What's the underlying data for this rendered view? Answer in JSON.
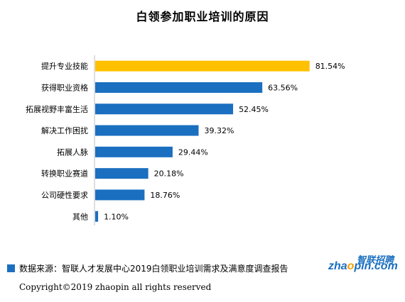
{
  "chart_data": {
    "type": "bar",
    "orientation": "horizontal",
    "title": "白领参加职业培训的原因",
    "categories": [
      "提升专业技能",
      "获得职业资格",
      "拓展视野丰富生活",
      "解决工作困扰",
      "拓展人脉",
      "转换职业赛道",
      "公司硬性要求",
      "其他"
    ],
    "values": [
      81.54,
      63.56,
      52.45,
      39.32,
      29.44,
      20.18,
      18.76,
      1.1
    ],
    "value_labels": [
      "81.54%",
      "63.56%",
      "52.45%",
      "39.32%",
      "29.44%",
      "20.18%",
      "18.76%",
      "1.10%"
    ],
    "unit": "%",
    "xlim": [
      0,
      100
    ],
    "grid": false,
    "colors": {
      "default": "#1b6fc0",
      "highlight": "#ffc000",
      "highlight_index": 0
    }
  },
  "footer": {
    "source": "数据来源：智联人才发展中心2019白领职业培训需求及满意度调查报告",
    "copyright": "Copyright©2019 zhaopin all rights reserved"
  },
  "logo": {
    "cn": "智联招聘",
    "en_pre": "zha",
    "en_hl": "o",
    "en_post": "pin.com"
  }
}
